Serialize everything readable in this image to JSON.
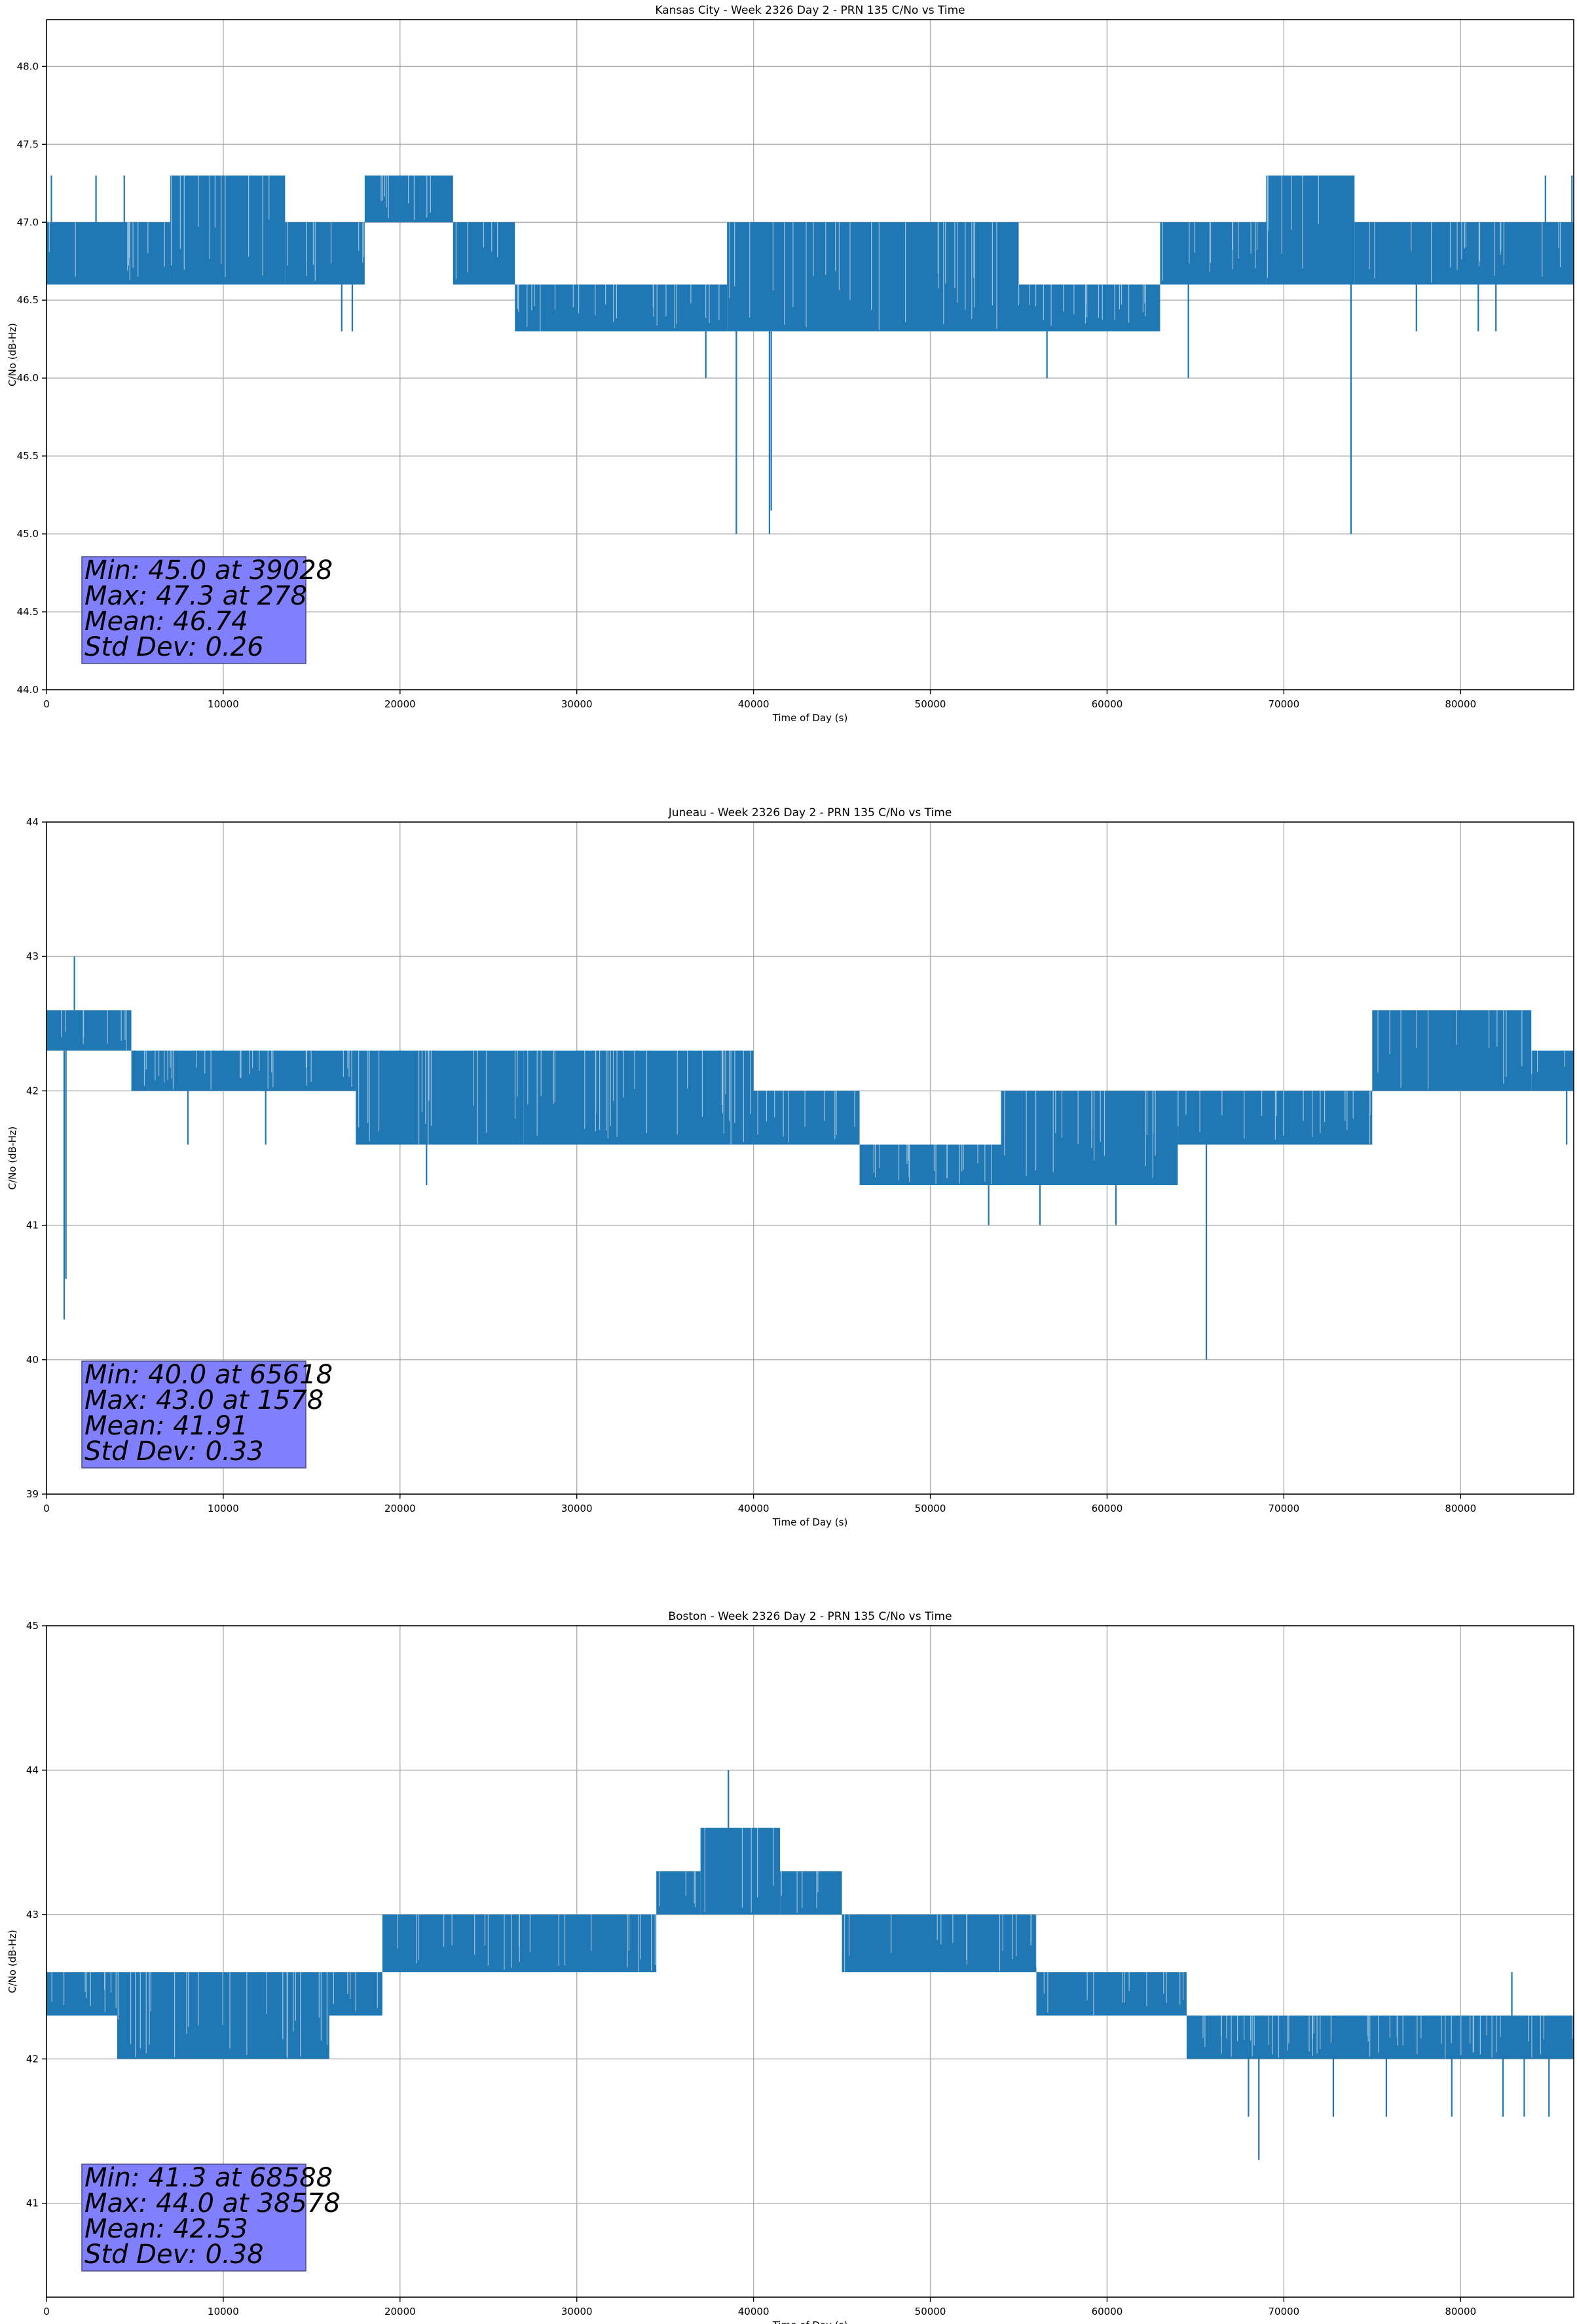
{
  "chart_data": [
    {
      "type": "line",
      "title": "Kansas City - Week 2326 Day 2 - PRN 135 C/No vs Time",
      "xlabel": "Time of Day (s)",
      "ylabel": "C/No (dB-Hz)",
      "xlim": [
        0,
        86400
      ],
      "ylim": [
        44.0,
        48.3
      ],
      "xticks": [
        0,
        10000,
        20000,
        30000,
        40000,
        50000,
        60000,
        70000,
        80000
      ],
      "yticks": [
        44.0,
        44.5,
        45.0,
        45.5,
        46.0,
        46.5,
        47.0,
        47.5,
        48.0
      ],
      "ytick_labels": [
        "44.0",
        "44.5",
        "45.0",
        "45.5",
        "46.0",
        "46.5",
        "47.0",
        "47.5",
        "48.0"
      ],
      "grid": true,
      "series_color": "#1f77b4",
      "bands": [
        {
          "x": [
            0,
            7000
          ],
          "y": [
            46.6,
            47.0
          ]
        },
        {
          "x": [
            7000,
            13500
          ],
          "y": [
            46.6,
            47.3
          ]
        },
        {
          "x": [
            13500,
            18000
          ],
          "y": [
            46.6,
            47.0
          ]
        },
        {
          "x": [
            18000,
            23000
          ],
          "y": [
            47.0,
            47.3
          ]
        },
        {
          "x": [
            23000,
            26500
          ],
          "y": [
            46.6,
            47.0
          ]
        },
        {
          "x": [
            26500,
            38500
          ],
          "y": [
            46.3,
            46.6
          ]
        },
        {
          "x": [
            38500,
            55000
          ],
          "y": [
            46.3,
            47.0
          ]
        },
        {
          "x": [
            55000,
            63000
          ],
          "y": [
            46.3,
            46.6
          ]
        },
        {
          "x": [
            63000,
            69000
          ],
          "y": [
            46.6,
            47.0
          ]
        },
        {
          "x": [
            69000,
            74000
          ],
          "y": [
            46.6,
            47.3
          ]
        },
        {
          "x": [
            74000,
            86400
          ],
          "y": [
            46.6,
            47.0
          ]
        }
      ],
      "spikes": [
        {
          "x": 278,
          "y": 47.3
        },
        {
          "x": 2800,
          "y": 47.3
        },
        {
          "x": 4400,
          "y": 47.3
        },
        {
          "x": 16700,
          "y": 46.3
        },
        {
          "x": 17300,
          "y": 46.3
        },
        {
          "x": 37300,
          "y": 46.0
        },
        {
          "x": 39028,
          "y": 45.0
        },
        {
          "x": 40900,
          "y": 45.0
        },
        {
          "x": 41000,
          "y": 45.15
        },
        {
          "x": 56600,
          "y": 46.0
        },
        {
          "x": 64600,
          "y": 46.0
        },
        {
          "x": 73800,
          "y": 45.0
        },
        {
          "x": 77500,
          "y": 46.3
        },
        {
          "x": 81000,
          "y": 46.3
        },
        {
          "x": 82000,
          "y": 46.3
        },
        {
          "x": 84800,
          "y": 47.3
        },
        {
          "x": 86300,
          "y": 47.3
        }
      ],
      "stats": {
        "min": "Min: 45.0 at 39028",
        "max": "Max: 47.3 at 278",
        "mean": "Mean: 46.74",
        "std": "Std Dev: 0.26"
      }
    },
    {
      "type": "line",
      "title": "Juneau - Week 2326 Day 2 - PRN 135 C/No vs Time",
      "xlabel": "Time of Day (s)",
      "ylabel": "C/No (dB-Hz)",
      "xlim": [
        0,
        86400
      ],
      "ylim": [
        39,
        44
      ],
      "xticks": [
        0,
        10000,
        20000,
        30000,
        40000,
        50000,
        60000,
        70000,
        80000
      ],
      "yticks": [
        39,
        40,
        41,
        42,
        43,
        44
      ],
      "ytick_labels": [
        "39",
        "40",
        "41",
        "42",
        "43",
        "44"
      ],
      "grid": true,
      "series_color": "#1f77b4",
      "bands": [
        {
          "x": [
            0,
            4800
          ],
          "y": [
            42.3,
            42.6
          ]
        },
        {
          "x": [
            4800,
            17500
          ],
          "y": [
            42.0,
            42.3
          ]
        },
        {
          "x": [
            17500,
            27000
          ],
          "y": [
            41.6,
            42.3
          ]
        },
        {
          "x": [
            27000,
            40000
          ],
          "y": [
            41.6,
            42.3
          ]
        },
        {
          "x": [
            40000,
            46000
          ],
          "y": [
            41.6,
            42.0
          ]
        },
        {
          "x": [
            46000,
            54000
          ],
          "y": [
            41.3,
            41.6
          ]
        },
        {
          "x": [
            54000,
            64000
          ],
          "y": [
            41.3,
            42.0
          ]
        },
        {
          "x": [
            64000,
            75000
          ],
          "y": [
            41.6,
            42.0
          ]
        },
        {
          "x": [
            75000,
            84000
          ],
          "y": [
            42.0,
            42.6
          ]
        },
        {
          "x": [
            84000,
            86400
          ],
          "y": [
            42.0,
            42.3
          ]
        }
      ],
      "spikes": [
        {
          "x": 1000,
          "y": 40.3
        },
        {
          "x": 1100,
          "y": 40.6
        },
        {
          "x": 1578,
          "y": 43.0
        },
        {
          "x": 8000,
          "y": 41.6
        },
        {
          "x": 12400,
          "y": 41.6
        },
        {
          "x": 21500,
          "y": 41.3
        },
        {
          "x": 53300,
          "y": 41.0
        },
        {
          "x": 56200,
          "y": 41.0
        },
        {
          "x": 60500,
          "y": 41.0
        },
        {
          "x": 65618,
          "y": 40.0
        },
        {
          "x": 86000,
          "y": 41.6
        }
      ],
      "stats": {
        "min": "Min: 40.0 at 65618",
        "max": "Max: 43.0 at 1578",
        "mean": "Mean: 41.91",
        "std": "Std Dev: 0.33"
      }
    },
    {
      "type": "line",
      "title": "Boston - Week 2326 Day 2 - PRN 135 C/No vs Time",
      "xlabel": "Time of Day (s)",
      "ylabel": "C/No (dB-Hz)",
      "xlim": [
        0,
        86400
      ],
      "ylim": [
        40.35,
        45
      ],
      "xticks": [
        0,
        10000,
        20000,
        30000,
        40000,
        50000,
        60000,
        70000,
        80000
      ],
      "yticks": [
        41,
        42,
        43,
        44,
        45
      ],
      "ytick_labels": [
        "41",
        "42",
        "43",
        "44",
        "45"
      ],
      "grid": true,
      "series_color": "#1f77b4",
      "bands": [
        {
          "x": [
            0,
            4000
          ],
          "y": [
            42.3,
            42.6
          ]
        },
        {
          "x": [
            4000,
            16000
          ],
          "y": [
            42.0,
            42.6
          ]
        },
        {
          "x": [
            16000,
            19000
          ],
          "y": [
            42.3,
            42.6
          ]
        },
        {
          "x": [
            19000,
            34500
          ],
          "y": [
            42.6,
            43.0
          ]
        },
        {
          "x": [
            34500,
            37000
          ],
          "y": [
            43.0,
            43.3
          ]
        },
        {
          "x": [
            37000,
            41500
          ],
          "y": [
            43.0,
            43.6
          ]
        },
        {
          "x": [
            41500,
            45000
          ],
          "y": [
            43.0,
            43.3
          ]
        },
        {
          "x": [
            45000,
            56000
          ],
          "y": [
            42.6,
            43.0
          ]
        },
        {
          "x": [
            56000,
            64500
          ],
          "y": [
            42.3,
            42.6
          ]
        },
        {
          "x": [
            64500,
            86400
          ],
          "y": [
            42.0,
            42.3
          ]
        }
      ],
      "spikes": [
        {
          "x": 38578,
          "y": 44.0
        },
        {
          "x": 68588,
          "y": 41.3
        },
        {
          "x": 68000,
          "y": 41.6
        },
        {
          "x": 72800,
          "y": 41.6
        },
        {
          "x": 75800,
          "y": 41.6
        },
        {
          "x": 79500,
          "y": 41.6
        },
        {
          "x": 82400,
          "y": 41.6
        },
        {
          "x": 83600,
          "y": 41.6
        },
        {
          "x": 85000,
          "y": 41.6
        },
        {
          "x": 82900,
          "y": 42.6
        }
      ],
      "stats": {
        "min": "Min: 41.3 at 68588",
        "max": "Max: 44.0 at 38578",
        "mean": "Mean: 42.53",
        "std": "Std Dev: 0.38"
      }
    }
  ]
}
